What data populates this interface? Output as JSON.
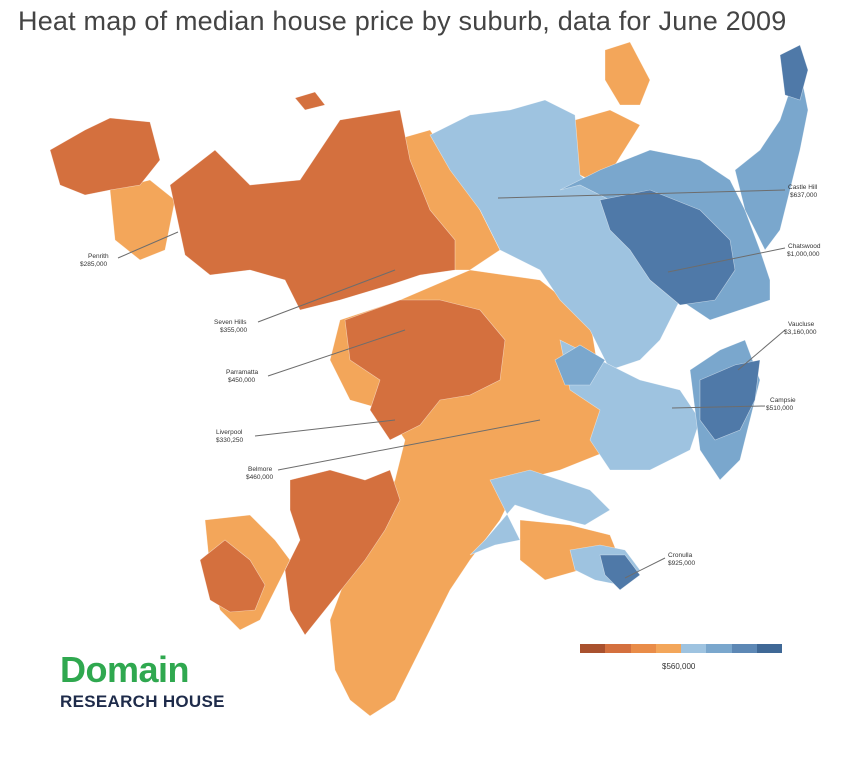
{
  "title": "Heat map of median house price by suburb, data for June 2009",
  "labels": {
    "penrith": {
      "name": "Penrith",
      "price": "$285,000"
    },
    "seven_hills": {
      "name": "Seven Hills",
      "price": "$355,000"
    },
    "parramatta": {
      "name": "Parramatta",
      "price": "$450,000"
    },
    "liverpool": {
      "name": "Liverpool",
      "price": "$330,250"
    },
    "belmore": {
      "name": "Belmore",
      "price": "$460,000"
    },
    "castle_hill": {
      "name": "Castle Hill",
      "price": "$637,000"
    },
    "chatswood": {
      "name": "Chatswood",
      "price": "$1,000,000"
    },
    "vaucluse": {
      "name": "Vaucluse",
      "price": "$3,160,000"
    },
    "campsie": {
      "name": "Campsie",
      "price": "$510,000"
    },
    "cronulla": {
      "name": "Cronulla",
      "price": "$925,000"
    }
  },
  "legend": {
    "midpoint_label": "$560,000",
    "colors": [
      "#a9512e",
      "#d4703e",
      "#e98c48",
      "#f3a65a",
      "#9ec3e0",
      "#7aa7cd",
      "#5d88b5",
      "#3f6896"
    ]
  },
  "colors": {
    "dark_orange": "#d4703e",
    "mid_orange": "#e98c48",
    "light_orange": "#f3a65a",
    "light_blue": "#9ec3e0",
    "mid_blue": "#7aa7cd",
    "dark_blue": "#4f79a8"
  },
  "logo": {
    "main": "Domain",
    "sub": "RESEARCH HOUSE"
  }
}
